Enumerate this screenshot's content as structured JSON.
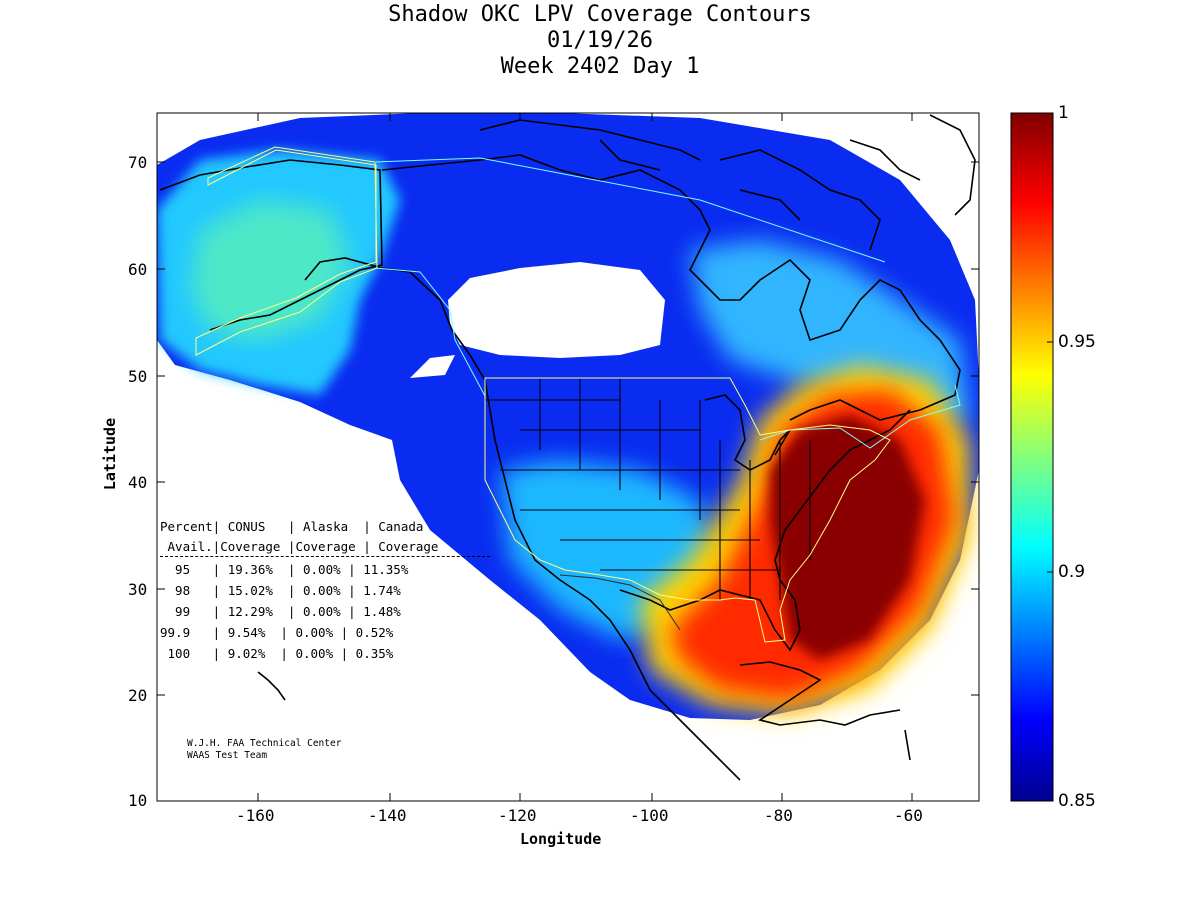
{
  "title": {
    "line1": "Shadow OKC LPV Coverage Contours",
    "line2": "01/19/26",
    "line3": "Week 2402 Day 1"
  },
  "axes": {
    "xlabel": "Longitude",
    "ylabel": "Latitude",
    "xticks": [
      "-160",
      "-140",
      "-120",
      "-100",
      "-80",
      "-60"
    ],
    "yticks": [
      "70",
      "60",
      "50",
      "40",
      "30",
      "20",
      "10"
    ],
    "xlim": [
      -175,
      -50
    ],
    "ylim": [
      10,
      75
    ]
  },
  "colorbar": {
    "ticks": [
      "1",
      "0.95",
      "0.9",
      "0.85"
    ],
    "range": [
      0.85,
      1
    ],
    "colormap": "jet"
  },
  "stats_table": {
    "header1": "Percent| CONUS   | Alaska  | Canada",
    "header2": " Avail.|Coverage |Coverage | Coverage",
    "rows": [
      "  95   | 19.36%  | 0.00% | 11.35%",
      "  98   | 15.02%  | 0.00% | 1.74%",
      "  99   | 12.29%  | 0.00% | 1.48%",
      "99.9   | 9.54%  | 0.00% | 0.52%",
      " 100   | 9.02%  | 0.00% | 0.35%"
    ]
  },
  "credit": {
    "line1": "W.J.H. FAA Technical Center",
    "line2": "WAAS Test Team"
  },
  "colors": {
    "max_coverage": "#800000",
    "high": "#ff0000",
    "mid": "#ffff00",
    "ninety": "#00e0ff",
    "low": "#0000c0",
    "min": "#00008f",
    "outline_conus": "#ffff80",
    "outline_alaska": "#ffff80",
    "outline_canada": "#80ffff",
    "coast": "#000000"
  }
}
